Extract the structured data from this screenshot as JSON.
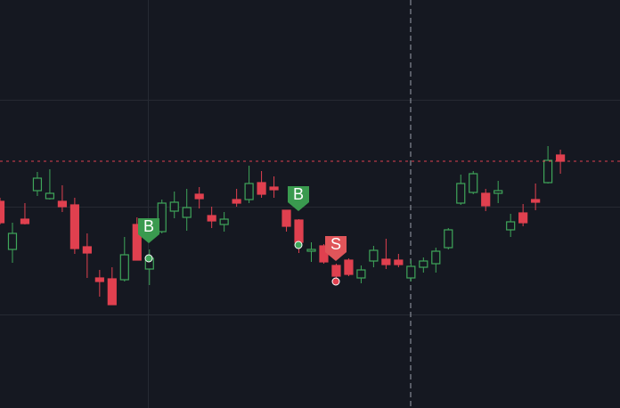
{
  "chart_data": {
    "type": "candlestick",
    "ylim": [
      0,
      458
    ],
    "up_color": "#3fa65a",
    "down_color": "#e0404f",
    "open": [
      232,
      178,
      212,
      244,
      235,
      232,
      228,
      181,
      146,
      145,
      144,
      206,
      156,
      198,
      221,
      214,
      240,
      216,
      206,
      234,
      234,
      253,
      248,
      222,
      211,
      176,
      182,
      160,
      166,
      146,
      165,
      167,
      166,
      146,
      158,
      162,
      180,
      230,
      242,
      241,
      241,
      200,
      219,
      234,
      253,
      284
    ],
    "high": [
      236,
      208,
      230,
      265,
      268,
      250,
      236,
      196,
      155,
      158,
      192,
      214,
      178,
      234,
      243,
      246,
      248,
      226,
      220,
      246,
      272,
      266,
      260,
      222,
      212,
      186,
      184,
      162,
      168,
      160,
      182,
      190,
      173,
      166,
      169,
      180,
      202,
      262,
      266,
      246,
      255,
      218,
      229,
      252,
      294,
      290
    ],
    "low": [
      206,
      163,
      206,
      238,
      234,
      220,
      173,
      146,
      125,
      116,
      142,
      166,
      138,
      196,
      213,
      199,
      224,
      202,
      198,
      226,
      230,
      236,
      236,
      198,
      174,
      164,
      162,
      146,
      148,
      140,
      158,
      156,
      158,
      142,
      152,
      152,
      178,
      228,
      240,
      221,
      230,
      192,
      204,
      222,
      252,
      263
    ],
    "close": [
      208,
      196,
      207,
      258,
      241,
      226,
      179,
      174,
      142,
      116,
      172,
      166,
      168,
      230,
      231,
      225,
      235,
      210,
      212,
      230,
      252,
      240,
      245,
      204,
      186,
      178,
      164,
      148,
      150,
      155,
      177,
      161,
      161,
      159,
      165,
      176,
      200,
      252,
      263,
      227,
      244,
      209,
      208,
      231,
      278,
      277
    ],
    "signals": [
      "B",
      "B",
      "S"
    ]
  }
}
